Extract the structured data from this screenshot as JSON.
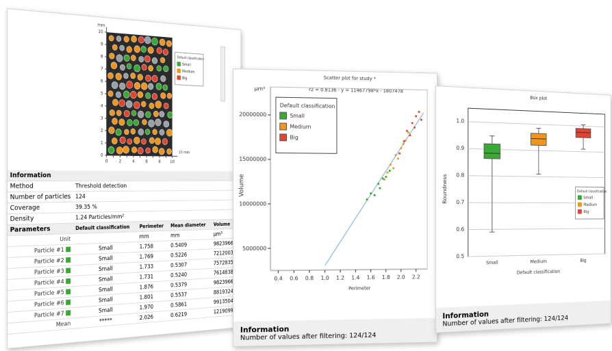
{
  "particle_view": {
    "unit": "mm",
    "x_unit": "10 mm",
    "lim": [
      0,
      10
    ],
    "ticks": [
      0,
      1,
      2,
      3,
      4,
      5,
      6,
      7,
      8,
      9,
      10
    ],
    "legend": {
      "title": "Default classification",
      "items": [
        {
          "name": "Small",
          "color": "#3aaa35"
        },
        {
          "name": "Medium",
          "color": "#f0961e"
        },
        {
          "name": "Big",
          "color": "#e2442f"
        }
      ]
    }
  },
  "information": {
    "title": "Information",
    "rows": [
      [
        "Method",
        "Threshold detection"
      ],
      [
        "Number of particles",
        "124"
      ],
      [
        "Coverage",
        "39.35 %"
      ],
      [
        "Density",
        "1.24 Particles/mm²"
      ]
    ]
  },
  "parameters": {
    "title": "Parameters",
    "columns": [
      "Default classification",
      "Perimeter",
      "Mean diameter",
      "Volume"
    ],
    "unit_label": "Unit",
    "units": [
      "mm",
      "mm",
      "µm³"
    ],
    "rows": [
      {
        "name": "Particle #1",
        "class": "Small",
        "values": [
          "1.758",
          "0.5409",
          "9823966"
        ]
      },
      {
        "name": "Particle #2",
        "class": "Small",
        "values": [
          "1.769",
          "0.5226",
          "7212003"
        ]
      },
      {
        "name": "Particle #3",
        "class": "Small",
        "values": [
          "1.733",
          "0.5307",
          "7572835"
        ]
      },
      {
        "name": "Particle #4",
        "class": "Small",
        "values": [
          "1.731",
          "0.5240",
          "7614838"
        ]
      },
      {
        "name": "Particle #5",
        "class": "Small",
        "values": [
          "1.876",
          "0.5379",
          "9823966"
        ]
      },
      {
        "name": "Particle #6",
        "class": "Small",
        "values": [
          "1.801",
          "0.5537",
          "8819324"
        ]
      },
      {
        "name": "Particle #7",
        "class": "Small",
        "values": [
          "1.970",
          "0.5861",
          "9913504"
        ]
      }
    ],
    "mean": {
      "name": "Mean",
      "class": "*****",
      "values": [
        "2.026",
        "0.6219",
        "12190998"
      ]
    }
  },
  "scatter_panel": {
    "title": "Scatter plot for study *",
    "equation": "r2 = 0.8136  -  y = 11467798*x - 1807478",
    "y_unit": "µm³",
    "y_label": "Volume",
    "x_label": "Perimeter",
    "xlim": [
      0.3,
      2.35
    ],
    "ylim": [
      2500000,
      22000000
    ],
    "xticks": [
      0.4,
      0.6,
      0.8,
      {
        "value": 1,
        "label": "1.0"
      },
      1.2,
      1.4,
      1.6,
      1.8,
      {
        "value": 2,
        "label": "2.0"
      },
      2.2
    ],
    "yticks": [
      5000000,
      10000000,
      15000000,
      20000000
    ],
    "legend_title": "Default classification",
    "fit_line": {
      "x": [
        1.0,
        2.3
      ],
      "y": [
        3000000,
        20500000
      ]
    },
    "series": [
      {
        "name": "Small",
        "color": "#3aaa35",
        "x": [
          1.55,
          1.6,
          1.65,
          1.7,
          1.72,
          1.76,
          1.8,
          1.85
        ],
        "y": [
          10500000,
          11200000,
          11000000,
          12300000,
          11800000,
          12900000,
          13100000,
          13800000
        ]
      },
      {
        "name": "Medium",
        "color": "#f0961e",
        "x": [
          1.78,
          1.82,
          1.86,
          1.9,
          1.93,
          1.96,
          2.0,
          2.03,
          2.06,
          2.1
        ],
        "y": [
          12800000,
          13600000,
          14500000,
          14100000,
          15600000,
          15200000,
          16400000,
          16900000,
          17300000,
          18200000
        ]
      },
      {
        "name": "Big",
        "color": "#e2442f",
        "x": [
          1.98,
          2.04,
          2.08,
          2.12,
          2.15,
          2.18,
          2.2,
          2.24,
          2.27
        ],
        "y": [
          15800000,
          17200000,
          18400000,
          17900000,
          19300000,
          18800000,
          20100000,
          20600000,
          19700000
        ]
      }
    ],
    "info_title": "Information",
    "info_text": "Number of values after filtering: 124/124"
  },
  "box_panel": {
    "title": "Box plot",
    "y_label": "Roundness",
    "x_label": "Default classification",
    "ylim": [
      0.5,
      1.05
    ],
    "yticks": [
      0.5,
      0.6,
      0.7,
      0.8,
      0.9,
      {
        "value": 1,
        "label": "1.0"
      }
    ],
    "legend_title": "Default classification",
    "boxes": [
      {
        "name": "Small",
        "color": "#3aaa35",
        "min": 0.59,
        "q1": 0.865,
        "median": 0.885,
        "q3": 0.92,
        "max": 0.95
      },
      {
        "name": "Medium",
        "color": "#f0961e",
        "min": 0.81,
        "q1": 0.92,
        "median": 0.945,
        "q3": 0.965,
        "max": 0.985
      },
      {
        "name": "Big",
        "color": "#e2442f",
        "min": 0.91,
        "q1": 0.955,
        "median": 0.975,
        "q3": 0.99,
        "max": 1.005
      }
    ],
    "info_title": "Information",
    "info_text": "Number of values after filtering: 124/124"
  }
}
